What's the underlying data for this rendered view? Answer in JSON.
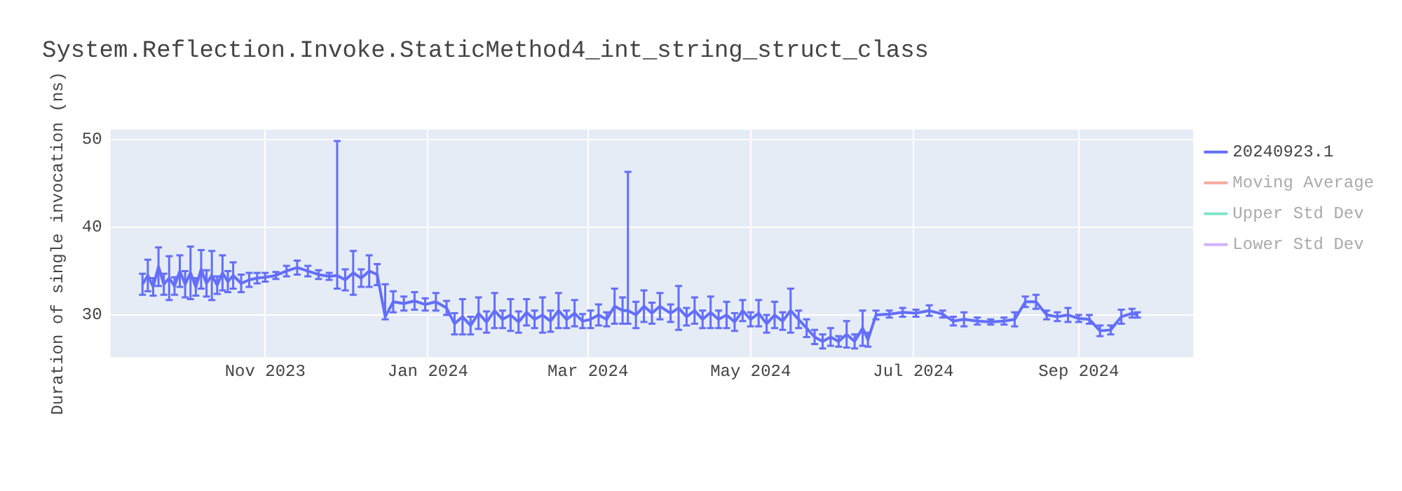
{
  "chart_data": {
    "type": "line",
    "title": "System.Reflection.Invoke.StaticMethod4_int_string_struct_class",
    "ylabel": "Duration of single invocation (ns)",
    "xlim": [
      "2023-09-04",
      "2024-10-14"
    ],
    "ylim": [
      25.2,
      51.1
    ],
    "yticks": [
      30,
      40,
      50
    ],
    "xticks": [
      {
        "value": "2023-11-01",
        "label": "Nov 2023"
      },
      {
        "value": "2024-01-01",
        "label": "Jan 2024"
      },
      {
        "value": "2024-03-01",
        "label": "Mar 2024"
      },
      {
        "value": "2024-05-01",
        "label": "May 2024"
      },
      {
        "value": "2024-07-01",
        "label": "Jul 2024"
      },
      {
        "value": "2024-09-01",
        "label": "Sep 2024"
      }
    ],
    "grid": true,
    "legend": "top right",
    "line_style": "solid",
    "series": [
      {
        "name": "20240923.1",
        "color": "#636efa",
        "x": [
          "2023-09-16",
          "2023-09-18",
          "2023-09-20",
          "2023-09-22",
          "2023-09-24",
          "2023-09-26",
          "2023-09-28",
          "2023-09-30",
          "2023-10-02",
          "2023-10-04",
          "2023-10-06",
          "2023-10-08",
          "2023-10-10",
          "2023-10-12",
          "2023-10-14",
          "2023-10-16",
          "2023-10-18",
          "2023-10-20",
          "2023-10-23",
          "2023-10-26",
          "2023-10-29",
          "2023-11-01",
          "2023-11-05",
          "2023-11-09",
          "2023-11-13",
          "2023-11-17",
          "2023-11-21",
          "2023-11-25",
          "2023-11-28",
          "2023-12-01",
          "2023-12-04",
          "2023-12-07",
          "2023-12-10",
          "2023-12-13",
          "2023-12-16",
          "2023-12-19",
          "2023-12-23",
          "2023-12-27",
          "2023-12-31",
          "2024-01-04",
          "2024-01-08",
          "2024-01-11",
          "2024-01-14",
          "2024-01-17",
          "2024-01-20",
          "2024-01-23",
          "2024-01-26",
          "2024-01-29",
          "2024-02-01",
          "2024-02-04",
          "2024-02-07",
          "2024-02-10",
          "2024-02-13",
          "2024-02-16",
          "2024-02-19",
          "2024-02-22",
          "2024-02-25",
          "2024-02-28",
          "2024-03-02",
          "2024-03-05",
          "2024-03-08",
          "2024-03-11",
          "2024-03-14",
          "2024-03-16",
          "2024-03-19",
          "2024-03-22",
          "2024-03-25",
          "2024-03-28",
          "2024-04-01",
          "2024-04-04",
          "2024-04-07",
          "2024-04-10",
          "2024-04-13",
          "2024-04-16",
          "2024-04-19",
          "2024-04-22",
          "2024-04-25",
          "2024-04-28",
          "2024-05-01",
          "2024-05-04",
          "2024-05-07",
          "2024-05-10",
          "2024-05-13",
          "2024-05-16",
          "2024-05-19",
          "2024-05-22",
          "2024-05-25",
          "2024-05-28",
          "2024-05-31",
          "2024-06-03",
          "2024-06-06",
          "2024-06-09",
          "2024-06-12",
          "2024-06-14",
          "2024-06-17",
          "2024-06-22",
          "2024-06-27",
          "2024-07-02",
          "2024-07-07",
          "2024-07-12",
          "2024-07-16",
          "2024-07-20",
          "2024-07-25",
          "2024-07-30",
          "2024-08-04",
          "2024-08-08",
          "2024-08-12",
          "2024-08-16",
          "2024-08-20",
          "2024-08-24",
          "2024-08-28",
          "2024-09-01",
          "2024-09-05",
          "2024-09-09",
          "2024-09-13",
          "2024-09-17",
          "2024-09-21",
          "2024-09-23"
        ],
        "values": [
          33.5,
          34.5,
          33.2,
          35.5,
          33.5,
          34.2,
          33.3,
          35,
          33.5,
          34.8,
          33.2,
          35.2,
          33.6,
          34.5,
          33.4,
          34.8,
          33.8,
          34.5,
          33.6,
          34,
          34.2,
          34.3,
          34.5,
          35,
          35.4,
          35,
          34.6,
          34.4,
          34.5,
          34,
          34.8,
          34.2,
          35,
          34.6,
          29.8,
          31.5,
          31.3,
          31.6,
          31.2,
          31.5,
          30.8,
          29,
          29.8,
          28.8,
          30.2,
          29.2,
          30.5,
          29.5,
          30,
          29.2,
          30.3,
          29.5,
          30,
          29.3,
          30.5,
          29.5,
          30.2,
          29.3,
          29.5,
          30,
          29.5,
          31,
          30.5,
          30.5,
          30,
          31,
          30.2,
          31,
          30.2,
          30.8,
          29.8,
          30.5,
          29.5,
          30.3,
          29.5,
          30,
          29.2,
          30.5,
          29.5,
          30.2,
          29,
          30,
          29.3,
          30.5,
          29.5,
          28.5,
          27.5,
          27,
          27.5,
          27,
          27.8,
          27,
          28.5,
          27.2,
          30,
          30.1,
          30.3,
          30.2,
          30.5,
          30.1,
          29.3,
          29.5,
          29.3,
          29.2,
          29.3,
          29.5,
          31.5,
          31.5,
          30,
          29.8,
          30,
          29.6,
          29.5,
          28.2,
          28.3,
          29.8,
          30.2,
          30
        ],
        "errors": [
          1.2,
          1.8,
          1,
          2.2,
          1.2,
          2.5,
          1,
          1.8,
          1.5,
          3,
          1,
          2.2,
          1.5,
          2.8,
          1,
          2,
          1.2,
          1.5,
          1,
          0.8,
          0.6,
          0.5,
          0.4,
          0.6,
          0.8,
          0.6,
          0.5,
          0.4,
          [
            33,
            49.8
          ],
          1.2,
          2.5,
          1,
          1.8,
          1.2,
          [
            29.5,
            33.5
          ],
          1.2,
          0.8,
          1,
          0.7,
          1,
          0.8,
          1.2,
          2,
          1,
          1.8,
          1.2,
          2,
          1,
          1.8,
          1.2,
          1.5,
          1,
          2,
          1.2,
          2,
          1,
          1.5,
          0.8,
          1,
          1.2,
          0.8,
          2,
          1.5,
          [
            29,
            46.3
          ],
          1.5,
          1.8,
          1.2,
          1.5,
          1,
          2.5,
          1,
          1.5,
          1,
          1.8,
          1,
          1.5,
          1,
          1.2,
          0.8,
          1.5,
          1,
          1.5,
          1,
          2.5,
          1,
          1,
          0.8,
          0.8,
          1,
          0.6,
          1.5,
          0.8,
          2,
          0.8,
          0.5,
          0.4,
          0.5,
          0.4,
          0.6,
          0.4,
          0.5,
          0.8,
          0.4,
          0.3,
          0.4,
          0.8,
          0.6,
          0.8,
          0.5,
          0.5,
          0.8,
          0.4,
          0.5,
          0.6,
          0.5,
          0.8,
          0.5,
          0.3
        ]
      },
      {
        "name": "Moving Average",
        "color": "#ef553b"
      },
      {
        "name": "Upper Std Dev",
        "color": "#00cc96"
      },
      {
        "name": "Lower Std Dev",
        "color": "#ab63fa"
      }
    ]
  }
}
